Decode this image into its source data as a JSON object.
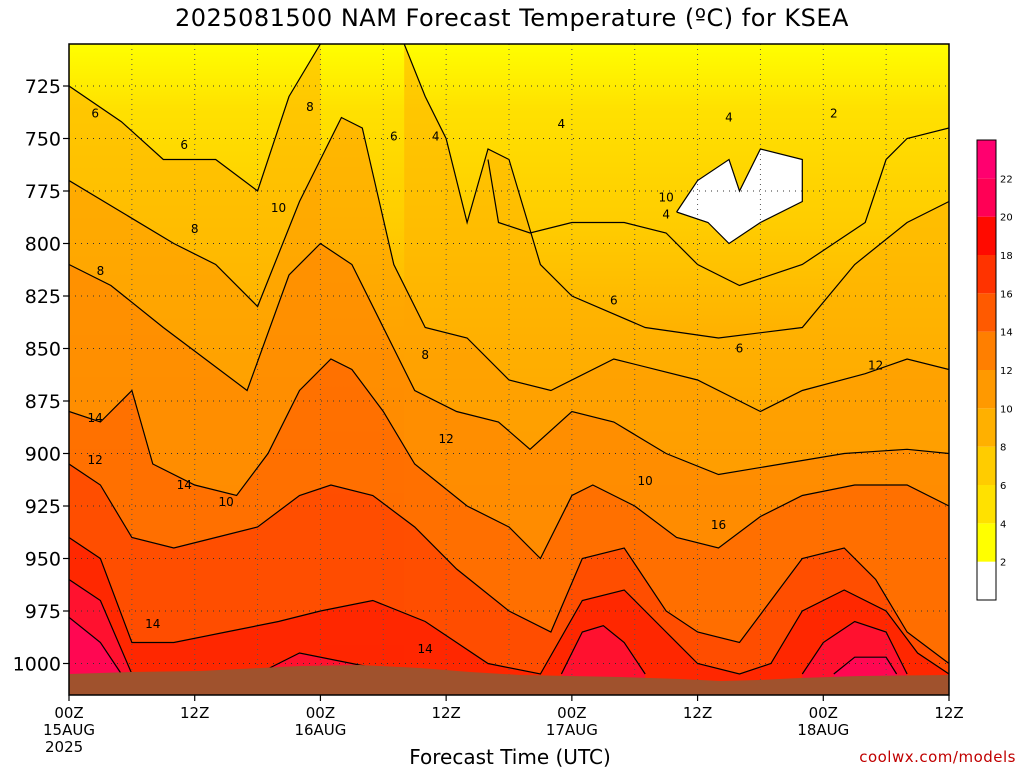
{
  "chart_data": {
    "type": "heatmap",
    "title": "2025081500 NAM Forecast Temperature (ºC) for KSEA",
    "xlabel": "Forecast Time (UTC)",
    "ylabel": "",
    "x_ticks": [
      {
        "hour": 0,
        "line1": "00Z",
        "line2": "15AUG",
        "line3": "2025"
      },
      {
        "hour": 12,
        "line1": "12Z",
        "line2": "",
        "line3": ""
      },
      {
        "hour": 24,
        "line1": "00Z",
        "line2": "16AUG",
        "line3": ""
      },
      {
        "hour": 36,
        "line1": "12Z",
        "line2": "",
        "line3": ""
      },
      {
        "hour": 48,
        "line1": "00Z",
        "line2": "17AUG",
        "line3": ""
      },
      {
        "hour": 60,
        "line1": "12Z",
        "line2": "",
        "line3": ""
      },
      {
        "hour": 72,
        "line1": "00Z",
        "line2": "18AUG",
        "line3": ""
      },
      {
        "hour": 84,
        "line1": "12Z",
        "line2": "",
        "line3": ""
      }
    ],
    "y_ticks": [
      "725",
      "750",
      "775",
      "800",
      "825",
      "850",
      "875",
      "900",
      "925",
      "950",
      "975",
      "1000"
    ],
    "x_range_hours": [
      0,
      84
    ],
    "y_range_hpa": [
      705,
      1015
    ],
    "y_direction": "pressure increasing downward",
    "grid": true,
    "colorbar": {
      "placement": "right",
      "labels": [
        "2",
        "4",
        "6",
        "8",
        "10",
        "12",
        "14",
        "16",
        "18",
        "20",
        "22"
      ],
      "colors": [
        "#ffffff",
        "#ffff00",
        "#ffe100",
        "#ffcc00",
        "#ffb000",
        "#ff9900",
        "#ff7f00",
        "#ff5a00",
        "#ff3300",
        "#ff0a00",
        "#ff0055",
        "#ff006f"
      ]
    },
    "contour_levels": [
      2,
      4,
      6,
      8,
      10,
      12,
      14,
      16,
      18,
      20,
      22
    ],
    "contour_label_values": [
      "6",
      "6",
      "6",
      "8",
      "8",
      "10",
      "4",
      "4",
      "4",
      "4",
      "2",
      "10",
      "8",
      "6",
      "8",
      "6",
      "12",
      "14",
      "12",
      "14",
      "10",
      "12",
      "10",
      "16",
      "14",
      "14"
    ],
    "contours": [
      {
        "level": 6,
        "points": [
          [
            0,
            725
          ],
          [
            5,
            742
          ],
          [
            9,
            760
          ],
          [
            14,
            760
          ],
          [
            18,
            775
          ],
          [
            21,
            730
          ],
          [
            24,
            705
          ]
        ]
      },
      {
        "level": 6,
        "points": [
          [
            32,
            705
          ],
          [
            34,
            730
          ],
          [
            36,
            750
          ],
          [
            38,
            790
          ],
          [
            40,
            755
          ],
          [
            42,
            760
          ],
          [
            45,
            810
          ],
          [
            48,
            825
          ],
          [
            55,
            840
          ],
          [
            62,
            845
          ],
          [
            70,
            840
          ],
          [
            75,
            810
          ],
          [
            80,
            790
          ],
          [
            84,
            780
          ]
        ]
      },
      {
        "level": 8,
        "points": [
          [
            0,
            770
          ],
          [
            5,
            785
          ],
          [
            10,
            800
          ],
          [
            14,
            810
          ],
          [
            18,
            830
          ],
          [
            22,
            780
          ],
          [
            26,
            740
          ],
          [
            28,
            745
          ],
          [
            31,
            810
          ],
          [
            34,
            840
          ],
          [
            38,
            845
          ],
          [
            42,
            865
          ],
          [
            46,
            870
          ],
          [
            52,
            855
          ],
          [
            60,
            865
          ],
          [
            66,
            880
          ],
          [
            70,
            870
          ],
          [
            76,
            862
          ],
          [
            80,
            855
          ],
          [
            84,
            860
          ]
        ]
      },
      {
        "level": 10,
        "points": [
          [
            0,
            810
          ],
          [
            4,
            820
          ],
          [
            9,
            840
          ],
          [
            13,
            855
          ],
          [
            17,
            870
          ],
          [
            21,
            815
          ],
          [
            24,
            800
          ],
          [
            27,
            810
          ],
          [
            30,
            840
          ],
          [
            33,
            870
          ],
          [
            37,
            880
          ],
          [
            41,
            885
          ],
          [
            44,
            898
          ],
          [
            48,
            880
          ],
          [
            52,
            885
          ],
          [
            57,
            900
          ],
          [
            62,
            910
          ],
          [
            68,
            905
          ],
          [
            74,
            900
          ],
          [
            80,
            898
          ],
          [
            84,
            900
          ]
        ]
      },
      {
        "level": 12,
        "points": [
          [
            0,
            880
          ],
          [
            3,
            885
          ],
          [
            6,
            870
          ],
          [
            8,
            905
          ],
          [
            12,
            915
          ],
          [
            16,
            920
          ],
          [
            19,
            900
          ],
          [
            22,
            870
          ],
          [
            25,
            855
          ],
          [
            27,
            860
          ],
          [
            30,
            880
          ],
          [
            33,
            905
          ],
          [
            38,
            925
          ],
          [
            42,
            935
          ],
          [
            45,
            950
          ],
          [
            48,
            920
          ],
          [
            50,
            915
          ],
          [
            54,
            925
          ],
          [
            58,
            940
          ],
          [
            62,
            945
          ],
          [
            66,
            930
          ],
          [
            70,
            920
          ],
          [
            75,
            915
          ],
          [
            80,
            915
          ],
          [
            84,
            925
          ]
        ]
      },
      {
        "level": 14,
        "points": [
          [
            0,
            905
          ],
          [
            3,
            915
          ],
          [
            6,
            940
          ],
          [
            10,
            945
          ],
          [
            14,
            940
          ],
          [
            18,
            935
          ],
          [
            22,
            920
          ],
          [
            25,
            915
          ],
          [
            29,
            920
          ],
          [
            33,
            935
          ],
          [
            37,
            955
          ],
          [
            42,
            975
          ],
          [
            46,
            985
          ],
          [
            49,
            950
          ],
          [
            53,
            945
          ],
          [
            57,
            975
          ],
          [
            60,
            985
          ],
          [
            64,
            990
          ],
          [
            67,
            970
          ],
          [
            70,
            950
          ],
          [
            74,
            945
          ],
          [
            77,
            960
          ],
          [
            80,
            985
          ],
          [
            84,
            1000
          ]
        ]
      },
      {
        "level": 16,
        "points": [
          [
            0,
            940
          ],
          [
            3,
            950
          ],
          [
            6,
            990
          ],
          [
            10,
            990
          ],
          [
            15,
            985
          ],
          [
            20,
            980
          ],
          [
            24,
            975
          ],
          [
            29,
            970
          ],
          [
            34,
            980
          ],
          [
            40,
            1000
          ],
          [
            45,
            1005
          ],
          [
            49,
            970
          ],
          [
            53,
            965
          ],
          [
            57,
            985
          ],
          [
            60,
            1000
          ],
          [
            64,
            1005
          ],
          [
            67,
            1000
          ],
          [
            70,
            975
          ],
          [
            74,
            965
          ],
          [
            78,
            975
          ],
          [
            81,
            995
          ],
          [
            84,
            1005
          ]
        ]
      },
      {
        "level": 18,
        "points": [
          [
            0,
            960
          ],
          [
            3,
            970
          ],
          [
            6,
            1005
          ]
        ]
      },
      {
        "level": 18,
        "points": [
          [
            18,
            1005
          ],
          [
            22,
            995
          ],
          [
            27,
            1000
          ],
          [
            32,
            1005
          ]
        ]
      },
      {
        "level": 18,
        "points": [
          [
            47,
            1005
          ],
          [
            49,
            985
          ],
          [
            51,
            982
          ],
          [
            53,
            990
          ],
          [
            55,
            1005
          ]
        ]
      },
      {
        "level": 18,
        "points": [
          [
            70,
            1005
          ],
          [
            72,
            990
          ],
          [
            75,
            980
          ],
          [
            78,
            985
          ],
          [
            80,
            1005
          ]
        ]
      },
      {
        "level": 20,
        "points": [
          [
            0,
            978
          ],
          [
            3,
            990
          ],
          [
            5,
            1005
          ]
        ]
      },
      {
        "level": 20,
        "points": [
          [
            73,
            1005
          ],
          [
            75,
            997
          ],
          [
            78,
            997
          ],
          [
            79,
            1005
          ]
        ]
      },
      {
        "level": 4,
        "points": [
          [
            40,
            760
          ],
          [
            41,
            790
          ],
          [
            44,
            795
          ],
          [
            48,
            790
          ],
          [
            53,
            790
          ],
          [
            57,
            795
          ],
          [
            60,
            810
          ],
          [
            64,
            820
          ],
          [
            70,
            810
          ],
          [
            76,
            790
          ],
          [
            78,
            760
          ],
          [
            80,
            750
          ],
          [
            84,
            745
          ]
        ]
      },
      {
        "level": 2,
        "points": [
          [
            58,
            785
          ],
          [
            60,
            770
          ],
          [
            63,
            760
          ],
          [
            64,
            775
          ],
          [
            66,
            755
          ],
          [
            70,
            760
          ],
          [
            70,
            780
          ],
          [
            66,
            790
          ],
          [
            63,
            800
          ],
          [
            61,
            790
          ],
          [
            58,
            785
          ]
        ]
      }
    ]
  },
  "plot": {
    "credit": "coolwx.com/models"
  }
}
